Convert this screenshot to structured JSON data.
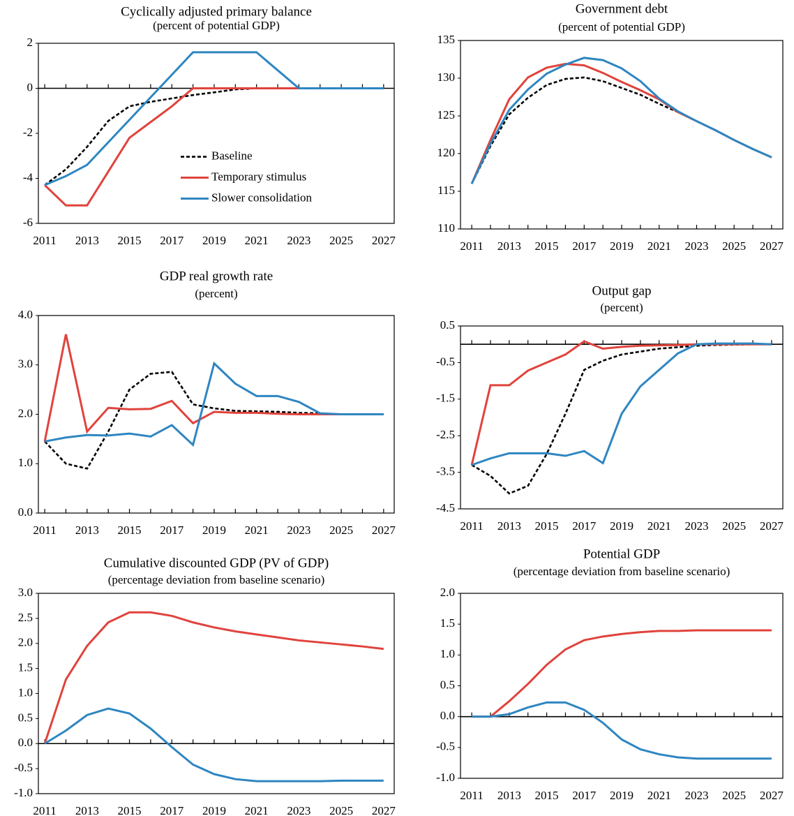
{
  "chart_data": [
    {
      "type": "line",
      "title": "Cyclically adjusted primary balance",
      "subtitle": "(percent of potential GDP)",
      "x": [
        2011,
        2012,
        2013,
        2014,
        2015,
        2016,
        2017,
        2018,
        2019,
        2020,
        2021,
        2022,
        2023,
        2024,
        2025,
        2026,
        2027
      ],
      "xlim": [
        2010.7,
        2027.5
      ],
      "xticks": [
        2011,
        2013,
        2015,
        2017,
        2019,
        2021,
        2023,
        2025,
        2027
      ],
      "ylim": [
        -6,
        2
      ],
      "yticks": [
        -6,
        -4,
        -2,
        0,
        2
      ],
      "grid": false,
      "legend": "center",
      "series": [
        {
          "name": "Baseline",
          "color": "#000000",
          "style": "dashed",
          "values": [
            -4.3,
            -3.6,
            -2.6,
            -1.45,
            -0.8,
            -0.6,
            -0.45,
            -0.3,
            -0.18,
            -0.05,
            0,
            0,
            0,
            0,
            0,
            0,
            0
          ]
        },
        {
          "name": "Temporary stimulus",
          "color": "#e0433c",
          "style": "solid",
          "values": [
            -4.3,
            -5.2,
            -5.2,
            -3.7,
            -2.2,
            -1.5,
            -0.8,
            0,
            0,
            0,
            0,
            0,
            0,
            0,
            0,
            0,
            0
          ]
        },
        {
          "name": "Slower consolidation",
          "color": "#2e86c1",
          "style": "solid",
          "values": [
            -4.3,
            -3.9,
            -3.4,
            -2.4,
            -1.4,
            -0.4,
            0.6,
            1.6,
            1.6,
            1.6,
            1.6,
            0.8,
            0,
            0,
            0,
            0,
            0
          ]
        }
      ]
    },
    {
      "type": "line",
      "title": "Government debt",
      "subtitle": "(percent of potential GDP)",
      "x": [
        2011,
        2012,
        2013,
        2014,
        2015,
        2016,
        2017,
        2018,
        2019,
        2020,
        2021,
        2022,
        2023,
        2024,
        2025,
        2026,
        2027
      ],
      "xlim": [
        2010.4,
        2027.6
      ],
      "xticks": [
        2011,
        2013,
        2015,
        2017,
        2019,
        2021,
        2023,
        2025,
        2027
      ],
      "ylim": [
        110,
        135
      ],
      "yticks": [
        110,
        115,
        120,
        125,
        130,
        135
      ],
      "grid": false,
      "series": [
        {
          "color": "#000000",
          "style": "dashed",
          "values": [
            116,
            121,
            125.2,
            127.4,
            129.1,
            129.9,
            130.1,
            129.6,
            128.7,
            127.8,
            126.6,
            125.5,
            124.3,
            123.1,
            121.8,
            120.6,
            119.5
          ]
        },
        {
          "color": "#e0433c",
          "style": "solid",
          "values": [
            116,
            121.8,
            127.2,
            130.1,
            131.4,
            131.9,
            131.7,
            130.7,
            129.5,
            128.4,
            127.2,
            125.5,
            124.3,
            123.1,
            121.8,
            120.6,
            119.5
          ]
        },
        {
          "color": "#2e86c1",
          "style": "solid",
          "values": [
            116,
            121.3,
            125.8,
            128.5,
            130.6,
            131.8,
            132.7,
            132.4,
            131.3,
            129.6,
            127.3,
            125.6,
            124.3,
            123.1,
            121.8,
            120.6,
            119.5
          ]
        }
      ]
    },
    {
      "type": "line",
      "title": "GDP real growth rate",
      "subtitle": "(percent)",
      "x": [
        2011,
        2012,
        2013,
        2014,
        2015,
        2016,
        2017,
        2018,
        2019,
        2020,
        2021,
        2022,
        2023,
        2024,
        2025,
        2026,
        2027
      ],
      "xlim": [
        2010.7,
        2027.5
      ],
      "xticks": [
        2011,
        2013,
        2015,
        2017,
        2019,
        2021,
        2023,
        2025,
        2027
      ],
      "ylim": [
        0,
        4
      ],
      "yticks": [
        {
          "value": 0,
          "label": "0.0"
        },
        {
          "value": 1,
          "label": "1.0"
        },
        {
          "value": 2,
          "label": "2.0"
        },
        {
          "value": 3,
          "label": "3.0"
        },
        {
          "value": 4,
          "label": "4.0"
        }
      ],
      "grid": false,
      "series": [
        {
          "color": "#000000",
          "style": "dashed",
          "values": [
            1.45,
            1.0,
            0.9,
            1.65,
            2.5,
            2.82,
            2.86,
            2.2,
            2.12,
            2.07,
            2.06,
            2.05,
            2.03,
            2.02,
            2.0,
            2.0,
            2.0
          ]
        },
        {
          "color": "#e0433c",
          "style": "solid",
          "values": [
            1.45,
            3.62,
            1.65,
            2.13,
            2.1,
            2.11,
            2.27,
            1.82,
            2.05,
            2.03,
            2.03,
            2.01,
            2.0,
            2.0,
            2.0,
            2.0,
            2.0
          ]
        },
        {
          "color": "#2e86c1",
          "style": "solid",
          "values": [
            1.45,
            1.53,
            1.58,
            1.57,
            1.61,
            1.55,
            1.78,
            1.38,
            3.03,
            2.62,
            2.37,
            2.37,
            2.25,
            2.02,
            2.0,
            2.0,
            2.0
          ]
        }
      ]
    },
    {
      "type": "line",
      "title": "Output gap",
      "subtitle": "(percent)",
      "x": [
        2011,
        2012,
        2013,
        2014,
        2015,
        2016,
        2017,
        2018,
        2019,
        2020,
        2021,
        2022,
        2023,
        2024,
        2025,
        2026,
        2027
      ],
      "xlim": [
        2010.4,
        2027.6
      ],
      "xticks": [
        2011,
        2013,
        2015,
        2017,
        2019,
        2021,
        2023,
        2025,
        2027
      ],
      "ylim": [
        -4.5,
        0.5
      ],
      "yticks": [
        -4.5,
        -3.5,
        -2.5,
        -1.5,
        -0.5,
        0.5
      ],
      "grid": false,
      "series": [
        {
          "color": "#000000",
          "style": "dashed",
          "values": [
            -3.3,
            -3.6,
            -4.08,
            -3.87,
            -3.0,
            -1.9,
            -0.7,
            -0.45,
            -0.28,
            -0.2,
            -0.12,
            -0.08,
            -0.04,
            -0.02,
            -0.01,
            0,
            0
          ]
        },
        {
          "color": "#e0433c",
          "style": "solid",
          "values": [
            -3.3,
            -1.12,
            -1.12,
            -0.72,
            -0.5,
            -0.28,
            0.08,
            -0.12,
            -0.07,
            -0.04,
            -0.03,
            -0.02,
            0,
            0,
            0,
            0,
            0
          ]
        },
        {
          "color": "#2e86c1",
          "style": "solid",
          "values": [
            -3.3,
            -3.12,
            -2.98,
            -2.98,
            -2.98,
            -3.05,
            -2.92,
            -3.25,
            -1.9,
            -1.15,
            -0.7,
            -0.25,
            0,
            0.02,
            0.02,
            0.02,
            0
          ]
        }
      ]
    },
    {
      "type": "line",
      "title": "Cumulative discounted GDP (PV of GDP)",
      "subtitle": "(percentage deviation from baseline scenario)",
      "x": [
        2011,
        2012,
        2013,
        2014,
        2015,
        2016,
        2017,
        2018,
        2019,
        2020,
        2021,
        2022,
        2023,
        2024,
        2025,
        2026,
        2027
      ],
      "xlim": [
        2010.7,
        2027.5
      ],
      "xticks": [
        2011,
        2013,
        2015,
        2017,
        2019,
        2021,
        2023,
        2025,
        2027
      ],
      "ylim": [
        -1,
        3
      ],
      "yticks": [
        {
          "value": -1,
          "label": "-1.0"
        },
        -0.5,
        {
          "value": 0,
          "label": "0.0"
        },
        0.5,
        {
          "value": 1,
          "label": "1.0"
        },
        1.5,
        {
          "value": 2,
          "label": "2.0"
        },
        2.5,
        {
          "value": 3,
          "label": "3.0"
        }
      ],
      "grid": false,
      "series": [
        {
          "color": "#e0433c",
          "style": "solid",
          "values": [
            0,
            1.28,
            1.95,
            2.42,
            2.62,
            2.62,
            2.55,
            2.42,
            2.32,
            2.24,
            2.18,
            2.12,
            2.06,
            2.02,
            1.98,
            1.94,
            1.89
          ]
        },
        {
          "color": "#2e86c1",
          "style": "solid",
          "values": [
            0,
            0.26,
            0.57,
            0.7,
            0.6,
            0.3,
            -0.07,
            -0.42,
            -0.61,
            -0.71,
            -0.75,
            -0.75,
            -0.75,
            -0.75,
            -0.74,
            -0.74,
            -0.74
          ]
        }
      ]
    },
    {
      "type": "line",
      "title": "Potential GDP",
      "subtitle": "(percentage deviation from baseline scenario)",
      "x": [
        2011,
        2012,
        2013,
        2014,
        2015,
        2016,
        2017,
        2018,
        2019,
        2020,
        2021,
        2022,
        2023,
        2024,
        2025,
        2026,
        2027
      ],
      "xlim": [
        2010.4,
        2027.6
      ],
      "xticks": [
        2011,
        2013,
        2015,
        2017,
        2019,
        2021,
        2023,
        2025,
        2027
      ],
      "ylim": [
        -1,
        2
      ],
      "yticks": [
        {
          "value": -1,
          "label": "-1.0"
        },
        -0.5,
        {
          "value": 0,
          "label": "0.0"
        },
        0.5,
        {
          "value": 1,
          "label": "1.0"
        },
        1.5,
        {
          "value": 2,
          "label": "2.0"
        }
      ],
      "grid": false,
      "series": [
        {
          "color": "#e0433c",
          "style": "solid",
          "values": [
            0,
            0,
            0.25,
            0.53,
            0.84,
            1.09,
            1.24,
            1.3,
            1.34,
            1.37,
            1.39,
            1.39,
            1.4,
            1.4,
            1.4,
            1.4,
            1.4
          ]
        },
        {
          "color": "#2e86c1",
          "style": "solid",
          "values": [
            0,
            0,
            0.04,
            0.15,
            0.23,
            0.23,
            0.11,
            -0.1,
            -0.37,
            -0.53,
            -0.61,
            -0.66,
            -0.68,
            -0.68,
            -0.68,
            -0.68,
            -0.68
          ]
        }
      ]
    }
  ]
}
